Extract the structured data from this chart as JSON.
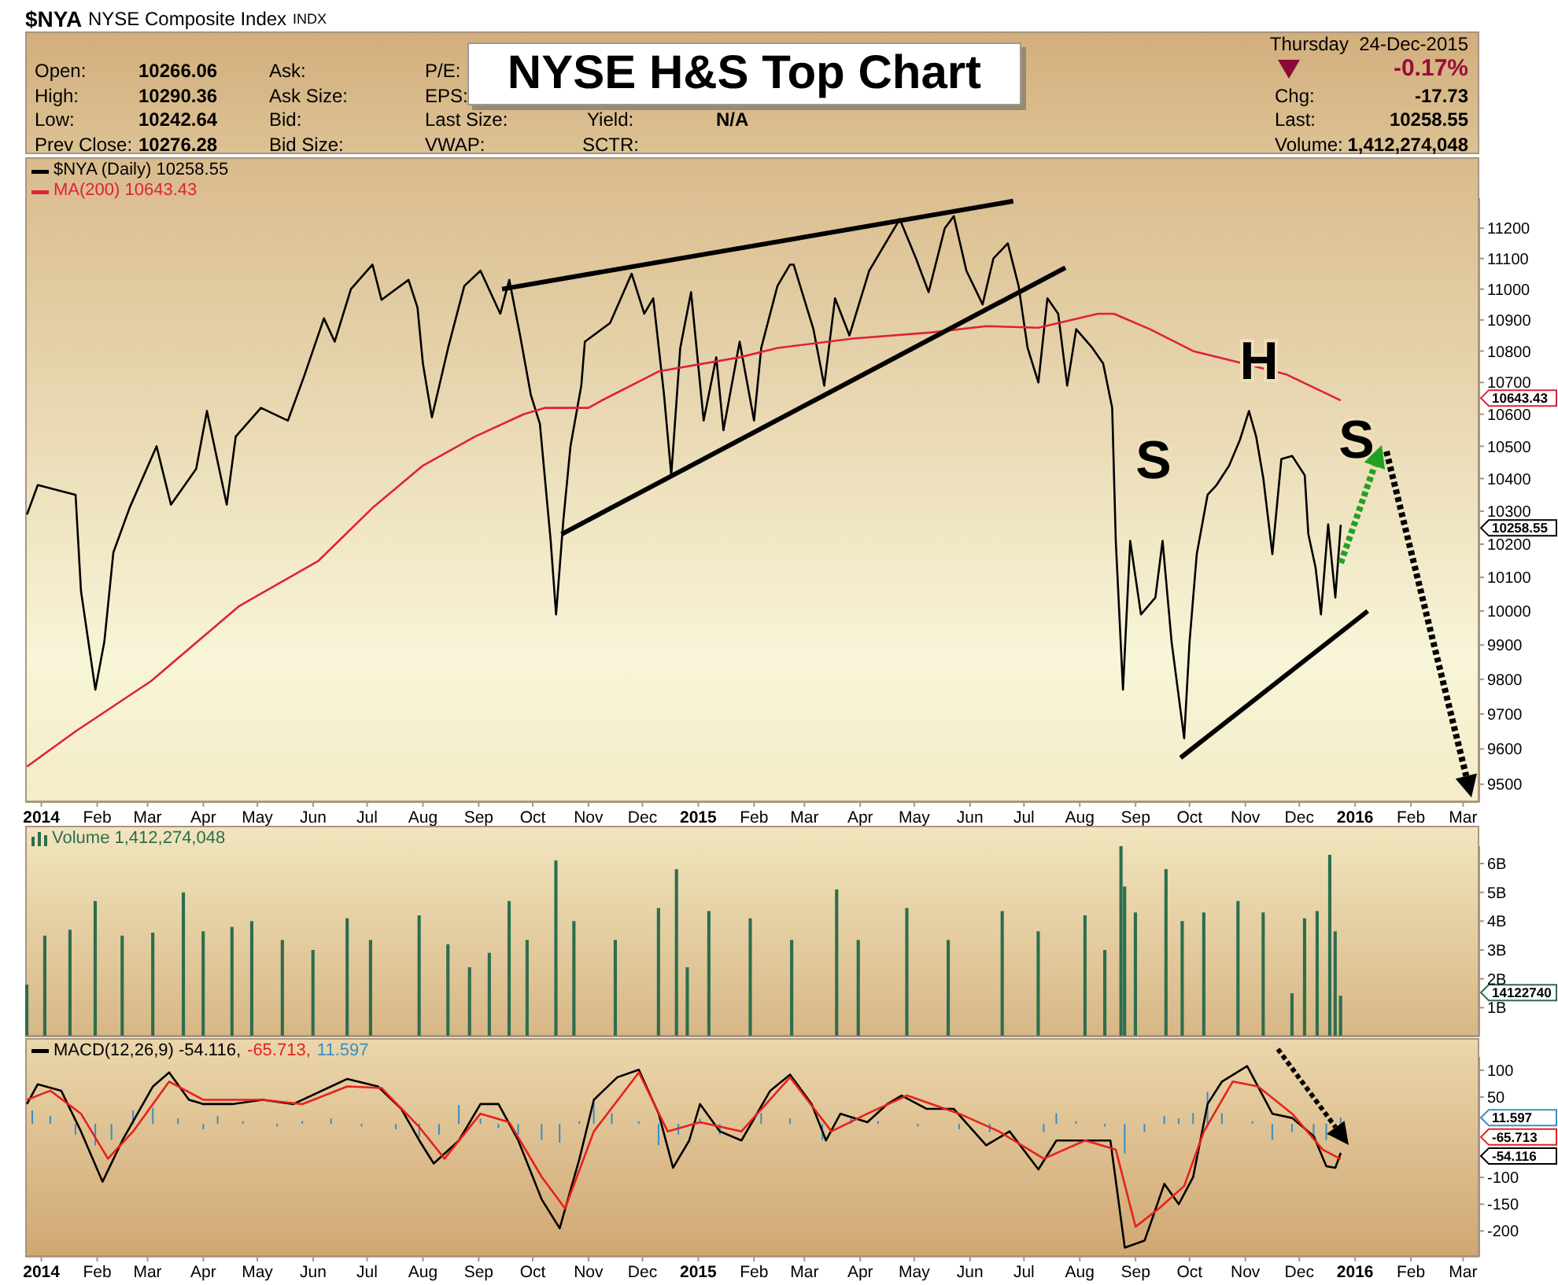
{
  "chart_data": [
    {
      "type": "line",
      "title": "NYSE H&S Top Chart",
      "log": "y",
      "legend": "top left",
      "xlim": [
        "2013-12-23",
        "2016-03-10"
      ],
      "xticks": [
        {
          "value": "2014-01",
          "label": "2014"
        },
        {
          "value": "2014-02",
          "label": "Feb"
        },
        {
          "value": "2014-03",
          "label": "Mar"
        },
        {
          "value": "2014-04",
          "label": "Apr"
        },
        {
          "value": "2014-05",
          "label": "May"
        },
        {
          "value": "2014-06",
          "label": "Jun"
        },
        {
          "value": "2014-07",
          "label": "Jul"
        },
        {
          "value": "2014-08",
          "label": "Aug"
        },
        {
          "value": "2014-09",
          "label": "Sep"
        },
        {
          "value": "2014-10",
          "label": "Oct"
        },
        {
          "value": "2014-11",
          "label": "Nov"
        },
        {
          "value": "2014-12",
          "label": "Dec"
        },
        {
          "value": "2015-01",
          "label": "2015"
        },
        {
          "value": "2015-02",
          "label": "Feb"
        },
        {
          "value": "2015-03",
          "label": "Mar"
        },
        {
          "value": "2015-04",
          "label": "Apr"
        },
        {
          "value": "2015-05",
          "label": "May"
        },
        {
          "value": "2015-06",
          "label": "Jun"
        },
        {
          "value": "2015-07",
          "label": "Jul"
        },
        {
          "value": "2015-08",
          "label": "Aug"
        },
        {
          "value": "2015-09",
          "label": "Sep"
        },
        {
          "value": "2015-10",
          "label": "Oct"
        },
        {
          "value": "2015-11",
          "label": "Nov"
        },
        {
          "value": "2015-12",
          "label": "Dec"
        },
        {
          "value": "2016-01",
          "label": "2016"
        },
        {
          "value": "2016-02",
          "label": "Feb"
        },
        {
          "value": "2016-03",
          "label": "Mar"
        }
      ],
      "ylim": [
        9450,
        11300
      ],
      "yticks": [
        9500,
        9600,
        9700,
        9800,
        9900,
        10000,
        10100,
        10200,
        10300,
        10400,
        10500,
        10600,
        10700,
        10800,
        10900,
        11000,
        11100,
        11200
      ],
      "series": [
        {
          "name": "$NYA (Daily) 10258.55",
          "color": "#000000",
          "x": [
            "2013-12-24",
            "2013-12-30",
            "2014-01-20",
            "2014-01-23",
            "2014-01-31",
            "2014-02-05",
            "2014-02-10",
            "2014-02-19",
            "2014-03-06",
            "2014-03-14",
            "2014-03-28",
            "2014-04-03",
            "2014-04-14",
            "2014-04-19",
            "2014-05-03",
            "2014-05-18",
            "2014-05-27",
            "2014-06-07",
            "2014-06-13",
            "2014-06-22",
            "2014-07-04",
            "2014-07-09",
            "2014-07-24",
            "2014-07-29",
            "2014-08-01",
            "2014-08-06",
            "2014-08-15",
            "2014-08-24",
            "2014-09-02",
            "2014-09-13",
            "2014-09-18",
            "2014-09-24",
            "2014-09-30",
            "2014-10-05",
            "2014-10-11",
            "2014-10-14",
            "2014-10-18",
            "2014-10-22",
            "2014-10-28",
            "2014-10-30",
            "2014-11-13",
            "2014-11-25",
            "2014-12-02",
            "2014-12-07",
            "2014-12-13",
            "2014-12-17",
            "2014-12-22",
            "2014-12-28",
            "2015-01-04",
            "2015-01-11",
            "2015-01-15",
            "2015-01-24",
            "2015-02-01",
            "2015-02-05",
            "2015-02-14",
            "2015-02-21",
            "2015-02-23",
            "2015-03-06",
            "2015-03-12",
            "2015-03-18",
            "2015-03-26",
            "2015-04-06",
            "2015-04-15",
            "2015-04-23",
            "2015-05-02",
            "2015-05-09",
            "2015-05-18",
            "2015-05-23",
            "2015-05-30",
            "2015-06-08",
            "2015-06-14",
            "2015-06-22",
            "2015-06-28",
            "2015-07-03",
            "2015-07-09",
            "2015-07-14",
            "2015-07-20",
            "2015-07-25",
            "2015-07-30",
            "2015-08-08",
            "2015-08-14",
            "2015-08-19",
            "2015-08-21",
            "2015-08-25",
            "2015-08-29",
            "2015-09-04",
            "2015-09-12",
            "2015-09-16",
            "2015-09-21",
            "2015-09-28",
            "2015-10-01",
            "2015-10-05",
            "2015-10-11",
            "2015-10-16",
            "2015-10-23",
            "2015-10-29",
            "2015-11-03",
            "2015-11-07",
            "2015-11-11",
            "2015-11-16",
            "2015-11-21",
            "2015-11-27",
            "2015-12-04",
            "2015-12-06",
            "2015-12-10",
            "2015-12-13",
            "2015-12-17",
            "2015-12-21",
            "2015-12-24"
          ],
          "values": [
            10290,
            10380,
            10350,
            10060,
            9770,
            9910,
            10175,
            10310,
            10500,
            10320,
            10430,
            10610,
            10320,
            10530,
            10620,
            10580,
            10720,
            10905,
            10830,
            11000,
            11080,
            10965,
            11030,
            10940,
            10760,
            10590,
            10810,
            11010,
            11060,
            10920,
            11030,
            10850,
            10660,
            10570,
            10210,
            9990,
            10270,
            10500,
            10690,
            10830,
            10890,
            11050,
            10920,
            10970,
            10660,
            10410,
            10810,
            10990,
            10580,
            10780,
            10550,
            10830,
            10580,
            10810,
            11010,
            11080,
            11080,
            10870,
            10690,
            10970,
            10850,
            11060,
            11150,
            11230,
            11100,
            10990,
            11200,
            11240,
            11060,
            10950,
            11100,
            11150,
            11010,
            10810,
            10700,
            10970,
            10920,
            10690,
            10870,
            10810,
            10760,
            10620,
            10210,
            9770,
            10210,
            9990,
            10040,
            10210,
            9910,
            9630,
            9910,
            10170,
            10350,
            10380,
            10440,
            10520,
            10610,
            10530,
            10400,
            10170,
            10460,
            10470,
            10410,
            10230,
            10130,
            9990,
            10260,
            10040,
            10258.55
          ]
        },
        {
          "name": "MA(200) 10643.43",
          "color": "#e0203c",
          "x": [
            "2013-12-24",
            "2014-01-20",
            "2014-03-03",
            "2014-04-21",
            "2014-06-04",
            "2014-07-04",
            "2014-08-01",
            "2014-08-30",
            "2014-09-26",
            "2014-10-08",
            "2014-11-01",
            "2014-11-09",
            "2014-12-10",
            "2015-01-24",
            "2015-02-14",
            "2015-03-28",
            "2015-05-11",
            "2015-06-10",
            "2015-07-09",
            "2015-08-11",
            "2015-08-20",
            "2015-09-09",
            "2015-10-03",
            "2015-10-31",
            "2015-11-24",
            "2015-12-24"
          ],
          "values": [
            9550,
            9650,
            9795,
            10015,
            10150,
            10310,
            10440,
            10530,
            10600,
            10620,
            10620,
            10645,
            10735,
            10780,
            10810,
            10840,
            10860,
            10880,
            10875,
            10920,
            10920,
            10870,
            10800,
            10760,
            10725,
            10643.43
          ]
        },
        {
          "color": "#000000",
          "x": [
            "2014-09-14",
            "2015-06-25"
          ],
          "values": [
            11000,
            11290
          ]
        },
        {
          "color": "#000000",
          "x": [
            "2014-10-17",
            "2015-07-24"
          ],
          "values": [
            10230,
            11070
          ]
        },
        {
          "color": "#000000",
          "x": [
            "2015-09-26",
            "2016-01-08"
          ],
          "values": [
            9575,
            10000
          ]
        }
      ],
      "annotations": [
        "$NYA",
        "NYSE Composite Index",
        "INDX",
        "Open:",
        "10266.06",
        "High:",
        "10290.36",
        "Low:",
        "10242.64",
        "Prev Close:",
        "10276.28",
        "Ask:",
        "Ask Size:",
        "Bid:",
        "Bid Size:",
        "P/E:",
        "EPS:",
        "Last Size:",
        "VWAP:",
        "Yield:",
        "N/A",
        "SCTR:",
        "Thursday  24-Dec-2015",
        "-0.17%",
        "Chg:",
        "-17.73",
        "Last:",
        "10258.55",
        "Volume:",
        "1,412,274,048",
        "S",
        "H",
        "S",
        "10643.43",
        "10258.55"
      ]
    },
    {
      "type": "bar",
      "legend": "top left",
      "tick_labels": "y",
      "xlim": [
        "2013-12-23",
        "2016-03-10"
      ],
      "xticks": [
        {
          "value": "2014-01",
          "label": null
        },
        {
          "value": "2014-02",
          "label": null
        },
        {
          "value": "2014-03",
          "label": null
        },
        {
          "value": "2014-04",
          "label": null
        },
        {
          "value": "2014-05",
          "label": null
        },
        {
          "value": "2014-06",
          "label": null
        },
        {
          "value": "2014-07",
          "label": null
        },
        {
          "value": "2014-08",
          "label": null
        },
        {
          "value": "2014-09",
          "label": null
        },
        {
          "value": "2014-10",
          "label": null
        },
        {
          "value": "2014-11",
          "label": null
        },
        {
          "value": "2014-12",
          "label": null
        },
        {
          "value": "2015-01",
          "label": null
        },
        {
          "value": "2015-02",
          "label": null
        },
        {
          "value": "2015-03",
          "label": null
        },
        {
          "value": "2015-04",
          "label": null
        },
        {
          "value": "2015-05",
          "label": null
        },
        {
          "value": "2015-06",
          "label": null
        },
        {
          "value": "2015-07",
          "label": null
        },
        {
          "value": "2015-08",
          "label": null
        },
        {
          "value": "2015-09",
          "label": null
        },
        {
          "value": "2015-10",
          "label": null
        },
        {
          "value": "2015-11",
          "label": null
        },
        {
          "value": "2015-12",
          "label": null
        },
        {
          "value": "2016-01",
          "label": null
        },
        {
          "value": "2016-02",
          "label": null
        },
        {
          "value": "2016-03",
          "label": null
        }
      ],
      "ylim": [
        0,
        6.6
      ],
      "yticks": [
        {
          "value": 1,
          "label": "1B"
        },
        {
          "value": 2,
          "label": "2B"
        },
        {
          "value": 3,
          "label": "3B"
        },
        {
          "value": 4,
          "label": "4B"
        },
        {
          "value": 5,
          "label": "5B"
        },
        {
          "value": 6,
          "label": "6B"
        }
      ],
      "series": [
        {
          "name": "Volume 1,412,274,048",
          "color": "#2c6e4e",
          "x": [
            "2013-12-24",
            "2014-01-03",
            "2014-01-17",
            "2014-01-31",
            "2014-02-15",
            "2014-03-04",
            "2014-03-21",
            "2014-04-01",
            "2014-04-17",
            "2014-04-28",
            "2014-05-15",
            "2014-06-01",
            "2014-06-20",
            "2014-07-03",
            "2014-07-30",
            "2014-08-15",
            "2014-08-27",
            "2014-09-07",
            "2014-09-18",
            "2014-09-28",
            "2014-10-14",
            "2014-10-24",
            "2014-11-16",
            "2014-12-10",
            "2014-12-20",
            "2014-12-26",
            "2015-01-07",
            "2015-01-30",
            "2015-02-22",
            "2015-03-19",
            "2015-03-31",
            "2015-04-27",
            "2015-05-20",
            "2015-06-19",
            "2015-07-09",
            "2015-08-04",
            "2015-08-15",
            "2015-08-24",
            "2015-08-26",
            "2015-09-01",
            "2015-09-18",
            "2015-09-27",
            "2015-10-09",
            "2015-10-28",
            "2015-11-11",
            "2015-11-27",
            "2015-12-04",
            "2015-12-11",
            "2015-12-18",
            "2015-12-21",
            "2015-12-24"
          ],
          "values": [
            1.8,
            3.5,
            3.7,
            4.7,
            3.5,
            3.6,
            5.0,
            3.65,
            3.8,
            4.0,
            3.35,
            3.0,
            4.1,
            3.35,
            4.2,
            3.2,
            2.4,
            2.9,
            4.7,
            3.35,
            6.1,
            4.0,
            3.35,
            4.45,
            5.8,
            2.4,
            4.35,
            4.1,
            3.35,
            5.1,
            3.35,
            4.45,
            3.35,
            4.35,
            3.65,
            4.2,
            3.0,
            6.6,
            5.2,
            4.3,
            5.8,
            4.0,
            4.3,
            4.7,
            4.3,
            1.5,
            4.1,
            4.35,
            6.3,
            3.65,
            1.412
          ]
        }
      ],
      "annotations": [
        "14122740"
      ]
    },
    {
      "type": "line",
      "legend": "top left",
      "xlim": [
        "2013-12-23",
        "2016-03-10"
      ],
      "xticks": [
        {
          "value": "2014-01",
          "label": "2014"
        },
        {
          "value": "2014-02",
          "label": "Feb"
        },
        {
          "value": "2014-03",
          "label": "Mar"
        },
        {
          "value": "2014-04",
          "label": "Apr"
        },
        {
          "value": "2014-05",
          "label": "May"
        },
        {
          "value": "2014-06",
          "label": "Jun"
        },
        {
          "value": "2014-07",
          "label": "Jul"
        },
        {
          "value": "2014-08",
          "label": "Aug"
        },
        {
          "value": "2014-09",
          "label": "Sep"
        },
        {
          "value": "2014-10",
          "label": "Oct"
        },
        {
          "value": "2014-11",
          "label": "Nov"
        },
        {
          "value": "2014-12",
          "label": "Dec"
        },
        {
          "value": "2015-01",
          "label": "2015"
        },
        {
          "value": "2015-02",
          "label": "Feb"
        },
        {
          "value": "2015-03",
          "label": "Mar"
        },
        {
          "value": "2015-04",
          "label": "Apr"
        },
        {
          "value": "2015-05",
          "label": "May"
        },
        {
          "value": "2015-06",
          "label": "Jun"
        },
        {
          "value": "2015-07",
          "label": "Jul"
        },
        {
          "value": "2015-08",
          "label": "Aug"
        },
        {
          "value": "2015-09",
          "label": "Sep"
        },
        {
          "value": "2015-10",
          "label": "Oct"
        },
        {
          "value": "2015-11",
          "label": "Nov"
        },
        {
          "value": "2015-12",
          "label": "Dec"
        },
        {
          "value": "2016-01",
          "label": "2016"
        },
        {
          "value": "2016-02",
          "label": "Feb"
        },
        {
          "value": "2016-03",
          "label": "Mar"
        }
      ],
      "ylim": [
        -248,
        125
      ],
      "yticks": [
        -200,
        -150,
        -100,
        50,
        100
      ],
      "series": [
        {
          "name": "MACD(12,26,9) -54.116,",
          "color": "#000000",
          "x": [
            "2013-12-24",
            "2013-12-30",
            "2014-01-12",
            "2014-01-23",
            "2014-02-04",
            "2014-02-15",
            "2014-03-04",
            "2014-03-13",
            "2014-03-24",
            "2014-04-01",
            "2014-04-17",
            "2014-05-04",
            "2014-05-21",
            "2014-06-11",
            "2014-06-20",
            "2014-07-07",
            "2014-07-20",
            "2014-07-30",
            "2014-08-07",
            "2014-08-21",
            "2014-09-02",
            "2014-09-12",
            "2014-09-23",
            "2014-10-06",
            "2014-10-16",
            "2014-10-27",
            "2014-11-04",
            "2014-11-17",
            "2014-11-29",
            "2014-12-10",
            "2014-12-18",
            "2014-12-27",
            "2015-01-02",
            "2015-01-13",
            "2015-01-25",
            "2015-02-10",
            "2015-02-21",
            "2015-03-05",
            "2015-03-13",
            "2015-03-21",
            "2015-04-05",
            "2015-04-16",
            "2015-04-24",
            "2015-05-08",
            "2015-05-23",
            "2015-06-10",
            "2015-06-23",
            "2015-07-09",
            "2015-07-19",
            "2015-08-03",
            "2015-08-18",
            "2015-08-26",
            "2015-09-06",
            "2015-09-17",
            "2015-09-25",
            "2015-10-03",
            "2015-10-11",
            "2015-10-19",
            "2015-11-02",
            "2015-11-16",
            "2015-11-27",
            "2015-12-09",
            "2015-12-16",
            "2015-12-21",
            "2015-12-24"
          ],
          "values": [
            37,
            74,
            62,
            -14,
            -108,
            -31,
            70,
            96,
            45,
            37,
            37,
            45,
            37,
            70,
            84,
            70,
            28,
            -31,
            -74,
            -31,
            37,
            37,
            -31,
            -141,
            -195,
            -65,
            45,
            87,
            101,
            19,
            -82,
            -31,
            37,
            -14,
            -31,
            62,
            92,
            37,
            -31,
            19,
            3,
            37,
            53,
            28,
            28,
            -40,
            -14,
            -85,
            -31,
            -31,
            -31,
            -231,
            -218,
            -112,
            -150,
            -99,
            37,
            79,
            108,
            19,
            11,
            -23,
            -79,
            -82,
            -54.116
          ]
        },
        {
          "name": "-65.713,",
          "color": "#e8201e",
          "x": [
            "2013-12-24",
            "2014-01-06",
            "2014-01-23",
            "2014-02-07",
            "2014-02-21",
            "2014-03-13",
            "2014-04-01",
            "2014-05-04",
            "2014-05-26",
            "2014-06-20",
            "2014-07-09",
            "2014-07-30",
            "2014-08-13",
            "2014-09-02",
            "2014-09-18",
            "2014-10-06",
            "2014-10-19",
            "2014-11-04",
            "2014-11-29",
            "2014-12-15",
            "2015-01-02",
            "2015-01-25",
            "2015-02-21",
            "2015-03-16",
            "2015-04-05",
            "2015-04-27",
            "2015-05-26",
            "2015-06-17",
            "2015-07-12",
            "2015-08-04",
            "2015-08-21",
            "2015-09-01",
            "2015-09-14",
            "2015-09-28",
            "2015-10-09",
            "2015-10-25",
            "2015-11-08",
            "2015-11-27",
            "2015-12-14",
            "2015-12-24"
          ],
          "values": [
            45,
            62,
            19,
            -65,
            -14,
            79,
            45,
            45,
            37,
            70,
            67,
            -6,
            -65,
            19,
            3,
            -99,
            -158,
            -14,
            96,
            -14,
            3,
            -14,
            87,
            -14,
            19,
            53,
            19,
            -14,
            -65,
            -31,
            -48,
            -192,
            -158,
            -116,
            -14,
            79,
            70,
            19,
            -48,
            -65.713
          ]
        },
        {
          "name": "11.597",
          "type": "bar",
          "color": "#3b8fc4",
          "x": [
            "2013-12-27",
            "2014-01-06",
            "2014-01-20",
            "2014-01-31",
            "2014-02-09",
            "2014-02-21",
            "2014-03-04",
            "2014-03-18",
            "2014-04-01",
            "2014-04-09",
            "2014-04-23",
            "2014-05-12",
            "2014-05-26",
            "2014-06-11",
            "2014-06-28",
            "2014-07-17",
            "2014-07-30",
            "2014-08-10",
            "2014-08-21",
            "2014-09-02",
            "2014-09-12",
            "2014-09-23",
            "2014-10-06",
            "2014-10-16",
            "2014-10-27",
            "2014-11-04",
            "2014-11-14",
            "2014-11-29",
            "2014-12-10",
            "2014-12-21",
            "2015-01-02",
            "2015-01-13",
            "2015-02-05",
            "2015-02-21",
            "2015-03-11",
            "2015-03-27",
            "2015-04-11",
            "2015-05-03",
            "2015-05-26",
            "2015-06-12",
            "2015-06-28",
            "2015-07-12",
            "2015-07-19",
            "2015-07-30",
            "2015-08-15",
            "2015-08-26",
            "2015-09-06",
            "2015-09-17",
            "2015-09-25",
            "2015-10-03",
            "2015-10-11",
            "2015-10-19",
            "2015-11-05",
            "2015-11-16",
            "2015-11-27",
            "2015-12-09",
            "2015-12-16",
            "2015-12-24"
          ],
          "values": [
            25,
            15,
            -20,
            -40,
            -30,
            25,
            30,
            10,
            -10,
            15,
            5,
            -5,
            5,
            10,
            -5,
            -10,
            -25,
            -20,
            35,
            10,
            -8,
            -20,
            -30,
            -35,
            5,
            40,
            20,
            5,
            -40,
            -20,
            10,
            -20,
            20,
            10,
            -30,
            10,
            5,
            -5,
            -10,
            -15,
            0,
            -15,
            20,
            5,
            -5,
            -55,
            -15,
            15,
            10,
            20,
            60,
            20,
            5,
            -30,
            -15,
            -20,
            -30,
            11.597
          ]
        }
      ],
      "annotations": [
        "11.597",
        "-54.116",
        "-65.713"
      ]
    }
  ]
}
